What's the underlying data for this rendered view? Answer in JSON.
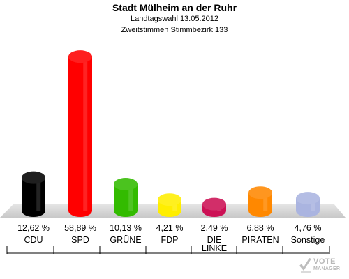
{
  "header": {
    "title": "Stadt Mülheim an der Ruhr",
    "subtitle": "Landtagswahl 13.05.2012",
    "subtitle2": "Zweitstimmen Stimmbezirk 133"
  },
  "logo": {
    "line1": "VOTE",
    "line2": "MANAGER"
  },
  "chart_data": {
    "type": "bar",
    "categories": [
      "CDU",
      "SPD",
      "GRÜNE",
      "FDP",
      "DIE LINKE",
      "PIRATEN",
      "Sonstige"
    ],
    "category_lines": [
      [
        "CDU"
      ],
      [
        "SPD"
      ],
      [
        "GRÜNE"
      ],
      [
        "FDP"
      ],
      [
        "DIE",
        "LINKE"
      ],
      [
        "PIRATEN"
      ],
      [
        "Sonstige"
      ]
    ],
    "values": [
      12.62,
      58.89,
      10.13,
      4.21,
      2.49,
      6.88,
      4.76
    ],
    "value_labels": [
      "12,62 %",
      "58,89 %",
      "10,13 %",
      "4,21 %",
      "2,49 %",
      "6,88 %",
      "4,76 %"
    ],
    "colors": [
      "#000000",
      "#ff0000",
      "#33bb00",
      "#ffee00",
      "#cc1155",
      "#ff8800",
      "#aab4e0"
    ],
    "title": "Stadt Mülheim an der Ruhr",
    "xlabel": "",
    "ylabel": "",
    "ylim": [
      0,
      60
    ],
    "grid": false,
    "legend": "none"
  }
}
